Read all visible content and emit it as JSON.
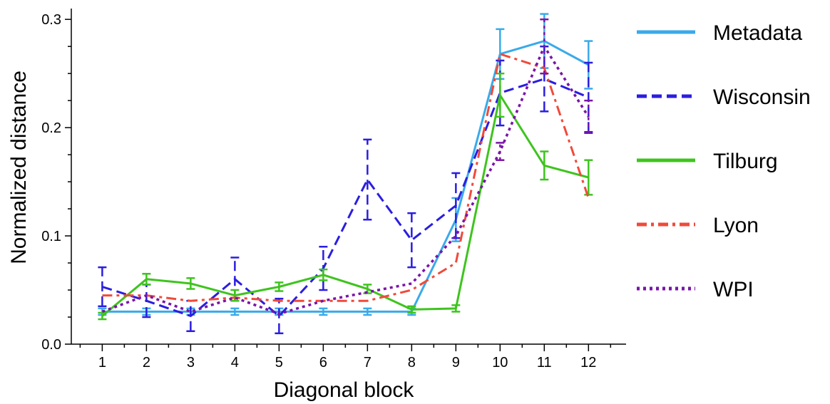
{
  "chart_data": {
    "type": "line",
    "xlabel": "Diagonal block",
    "ylabel": "Normalized distance",
    "x": [
      1,
      2,
      3,
      4,
      5,
      6,
      7,
      8,
      9,
      10,
      11,
      12
    ],
    "x_tick_labels": [
      "1",
      "2",
      "3",
      "4",
      "5",
      "6",
      "7",
      "8",
      "9",
      "10",
      "11",
      "12"
    ],
    "xlim": [
      0.3,
      12.85
    ],
    "ylim": [
      0,
      0.31
    ],
    "y_ticks": [
      0.0,
      0.1,
      0.2,
      0.3
    ],
    "y_tick_labels": [
      "0.0",
      "0.1",
      "0.2",
      "0.3"
    ],
    "legend_position": "right",
    "series": [
      {
        "name": "Metadata",
        "color": "#3aaaea",
        "dash": "solid",
        "values": [
          0.03,
          0.03,
          0.03,
          0.03,
          0.03,
          0.03,
          0.03,
          0.03,
          0.115,
          0.268,
          0.28,
          0.258
        ],
        "errors": [
          0.003,
          0.003,
          0.003,
          0.003,
          0.003,
          0.003,
          0.003,
          0.003,
          0.02,
          0.023,
          0.025,
          0.022
        ]
      },
      {
        "name": "Wisconsin",
        "color": "#2a1ee0",
        "dash": "dashed",
        "values": [
          0.053,
          0.04,
          0.026,
          0.06,
          0.026,
          0.07,
          0.152,
          0.096,
          0.128,
          0.232,
          0.245,
          0.228
        ],
        "errors": [
          0.018,
          0.015,
          0.014,
          0.02,
          0.016,
          0.02,
          0.037,
          0.025,
          0.03,
          0.03,
          0.03,
          0.032
        ]
      },
      {
        "name": "Tilburg",
        "color": "#3ec41e",
        "dash": "solid",
        "values": [
          0.026,
          0.06,
          0.056,
          0.045,
          0.053,
          0.064,
          0.051,
          0.032,
          0.033,
          0.23,
          0.165,
          0.154
        ],
        "errors": [
          0.003,
          0.005,
          0.005,
          0.005,
          0.004,
          0.005,
          0.004,
          0.003,
          0.003,
          0.02,
          0.013,
          0.016
        ]
      },
      {
        "name": "Lyon",
        "color": "#f04a3a",
        "dash": "dashdot",
        "values": [
          0.045,
          0.045,
          0.04,
          0.043,
          0.04,
          0.04,
          0.04,
          0.05,
          0.075,
          0.268,
          0.255,
          0.135
        ],
        "errors": [
          0,
          0,
          0,
          0,
          0,
          0,
          0,
          0,
          0,
          0,
          0,
          0
        ]
      },
      {
        "name": "WPI",
        "color": "#7a14a8",
        "dash": "dotted",
        "values": [
          0.03,
          0.045,
          0.03,
          0.043,
          0.028,
          0.04,
          0.048,
          0.056,
          0.1,
          0.178,
          0.275,
          0.21
        ],
        "errors": [
          0,
          0,
          0,
          0,
          0,
          0,
          0,
          0,
          0,
          0.008,
          0.025,
          0.015
        ]
      }
    ]
  }
}
